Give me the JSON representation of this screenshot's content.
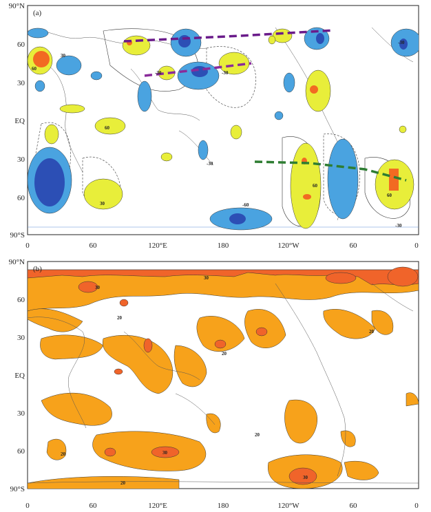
{
  "panels": [
    {
      "id": "a",
      "label": "(a)",
      "y_ticks": [
        "90°N",
        "60",
        "30",
        "EQ",
        "30",
        "60",
        "90°S"
      ],
      "x_ticks": [
        "0",
        "60",
        "120°E",
        "180",
        "120°W",
        "60",
        "0"
      ],
      "contour_labels": [
        "30",
        "60",
        "-30",
        "-60"
      ],
      "colors": {
        "light_yellow": "#e8ee3a",
        "orange": "#f26a22",
        "light_blue": "#4aa3e0",
        "dark_blue": "#2c4fb5",
        "purple_dash": "#6a1b8a",
        "green_dash": "#2e7d32"
      }
    },
    {
      "id": "b",
      "label": "(b)",
      "y_ticks": [
        "90°N",
        "60",
        "30",
        "EQ",
        "30",
        "60",
        "90°S"
      ],
      "x_ticks": [
        "0",
        "60",
        "120°E",
        "180",
        "120°W",
        "60",
        "0"
      ],
      "contour_labels": [
        "20",
        "30"
      ],
      "colors": {
        "light_orange": "#f7a21b",
        "dark_orange": "#f0642a"
      }
    }
  ]
}
